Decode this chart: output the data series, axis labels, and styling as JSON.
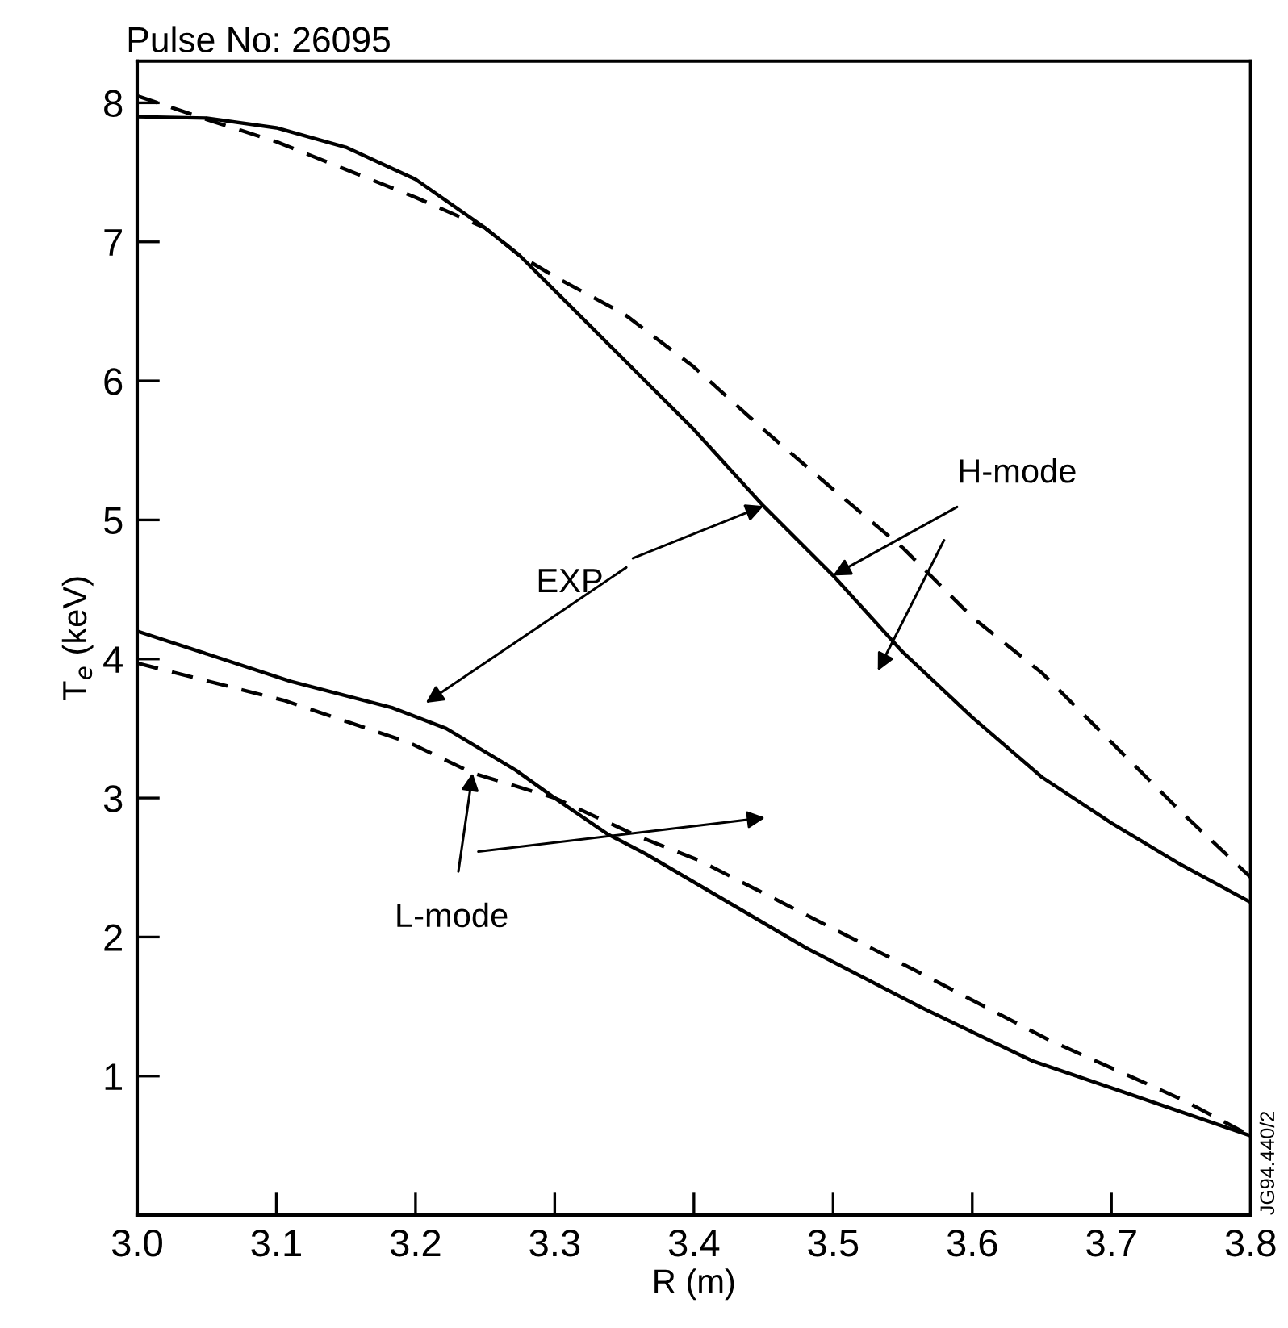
{
  "chart_data": {
    "type": "line",
    "title": "Pulse No: 26095",
    "xlabel": "R (m)",
    "ylabel": "T$_{e}$ (keV)",
    "xlim": [
      3.0,
      3.8
    ],
    "xticks": [
      {
        "value": 3.0,
        "label": "3.0"
      },
      3.1,
      3.2,
      3.3,
      3.4,
      3.5,
      3.6,
      3.7,
      3.8
    ],
    "ylim": [
      0,
      8.3
    ],
    "yticks": [
      1,
      2,
      3,
      4,
      5,
      6,
      7,
      8
    ],
    "grid": false,
    "marker": "none",
    "series": [
      {
        "color": "#000000",
        "line_style": "solid",
        "x": [
          3.0,
          3.05,
          3.1,
          3.15,
          3.2,
          3.25,
          3.275,
          3.3,
          3.35,
          3.4,
          3.45,
          3.5,
          3.55,
          3.6,
          3.65,
          3.7,
          3.75,
          3.8
        ],
        "values": [
          7.9,
          7.89,
          7.82,
          7.68,
          7.45,
          7.1,
          6.9,
          6.65,
          6.15,
          5.65,
          5.1,
          4.6,
          4.05,
          3.58,
          3.15,
          2.82,
          2.52,
          2.25
        ]
      },
      {
        "color": "#000000",
        "line_style": "dashed",
        "x": [
          3.0,
          3.05,
          3.1,
          3.15,
          3.2,
          3.25,
          3.275,
          3.3,
          3.35,
          3.4,
          3.45,
          3.5,
          3.55,
          3.6,
          3.65,
          3.7,
          3.75,
          3.8
        ],
        "values": [
          8.05,
          7.88,
          7.72,
          7.52,
          7.32,
          7.1,
          6.9,
          6.75,
          6.48,
          6.1,
          5.65,
          5.22,
          4.8,
          4.3,
          3.9,
          3.4,
          2.9,
          2.43
        ]
      },
      {
        "color": "#000000",
        "line_style": "solid",
        "x": [
          3.0,
          3.11,
          3.183,
          3.222,
          3.272,
          3.3,
          3.338,
          3.365,
          3.481,
          3.562,
          3.643,
          3.713,
          3.8
        ],
        "values": [
          4.2,
          3.84,
          3.65,
          3.5,
          3.2,
          3.0,
          2.74,
          2.6,
          1.92,
          1.5,
          1.11,
          0.87,
          0.57
        ]
      },
      {
        "color": "#000000",
        "line_style": "dashed",
        "x": [
          3.0,
          3.106,
          3.195,
          3.241,
          3.3,
          3.361,
          3.404,
          3.559,
          3.655,
          3.751,
          3.8
        ],
        "values": [
          3.97,
          3.7,
          3.4,
          3.18,
          3.0,
          2.72,
          2.55,
          1.76,
          1.26,
          0.83,
          0.57
        ]
      }
    ],
    "annotations": [
      {
        "text": "EXP",
        "x": 3.45,
        "y": 5.1
      },
      {
        "text": "H-mode",
        "x": 3.5,
        "y": 4.6
      },
      {
        "text": "L-mode",
        "x": 3.241,
        "y": 3.18
      },
      "JG94.440/2"
    ]
  }
}
